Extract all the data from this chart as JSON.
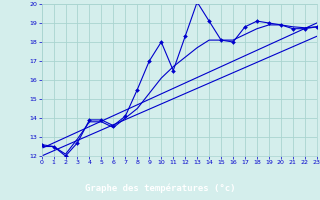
{
  "xlabel": "Graphe des températures (°c)",
  "xlim": [
    0,
    23
  ],
  "ylim": [
    12,
    20
  ],
  "yticks": [
    12,
    13,
    14,
    15,
    16,
    17,
    18,
    19,
    20
  ],
  "xticks": [
    0,
    1,
    2,
    3,
    4,
    5,
    6,
    7,
    8,
    9,
    10,
    11,
    12,
    13,
    14,
    15,
    16,
    17,
    18,
    19,
    20,
    21,
    22,
    23
  ],
  "background_color": "#d4eeec",
  "grid_color": "#aad4d0",
  "line_color": "#0000cc",
  "xlabel_bg": "#0000aa",
  "xlabel_fg": "#ffffff",
  "line1_x": [
    0,
    1,
    2,
    3,
    4,
    5,
    6,
    7,
    8,
    9,
    10,
    11,
    12,
    13,
    14,
    15,
    16,
    17,
    18,
    19,
    20,
    21,
    22,
    23
  ],
  "line1_y": [
    12.6,
    12.5,
    12.0,
    12.7,
    13.9,
    13.9,
    13.6,
    14.1,
    15.5,
    17.0,
    18.0,
    16.5,
    18.3,
    20.1,
    19.1,
    18.1,
    18.0,
    18.8,
    19.1,
    19.0,
    18.9,
    18.7,
    18.7,
    18.8
  ],
  "line2_x": [
    0,
    1,
    2,
    3,
    4,
    5,
    6,
    7,
    8,
    9,
    10,
    11,
    12,
    13,
    14,
    15,
    16,
    17,
    18,
    19,
    20,
    21,
    22,
    23
  ],
  "line2_y": [
    12.5,
    12.5,
    12.1,
    12.9,
    13.8,
    13.8,
    13.5,
    14.0,
    14.5,
    15.3,
    16.1,
    16.7,
    17.2,
    17.7,
    18.1,
    18.1,
    18.1,
    18.4,
    18.7,
    18.9,
    18.9,
    18.8,
    18.75,
    18.8
  ],
  "line3_x": [
    0,
    23
  ],
  "line3_y": [
    12.4,
    19.0
  ],
  "line4_x": [
    0,
    23
  ],
  "line4_y": [
    12.0,
    18.3
  ]
}
